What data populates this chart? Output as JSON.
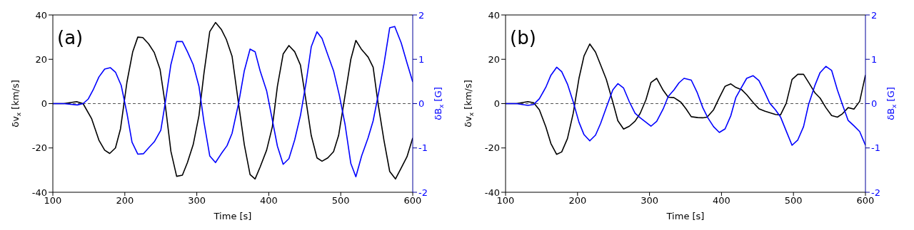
{
  "chart_data": [
    {
      "type": "line",
      "annotations": [
        "(a)"
      ],
      "xlabel": "Time [s]",
      "ylabel": "δv$_{x}$ [km/s]",
      "y2label": "δB$_{x}$ [G]",
      "xlim": [
        100,
        600
      ],
      "xticks": [
        100,
        200,
        300,
        400,
        500,
        600
      ],
      "ylim": [
        -40,
        40
      ],
      "yticks": [
        -40,
        -20,
        0,
        20,
        40
      ],
      "y2lim": [
        -2,
        2
      ],
      "y2ticks": [
        -2,
        -1,
        0,
        1,
        2
      ],
      "marker": "none",
      "line_style": "solid",
      "ref_lines": [
        {
          "axis": "y",
          "value": 0,
          "color": "#555555",
          "line_style": "dashed"
        }
      ],
      "series": [
        {
          "color": "#000000",
          "x": [
            100,
            115,
            133,
            142,
            154,
            164,
            172,
            179,
            187,
            194,
            203,
            211,
            218,
            225,
            233,
            241,
            249,
            256,
            264,
            272,
            280,
            287,
            295,
            303,
            310,
            318,
            326,
            334,
            341,
            349,
            358,
            366,
            374,
            381,
            388,
            397,
            405,
            412,
            420,
            428,
            436,
            444,
            452,
            459,
            467,
            474,
            482,
            490,
            497,
            506,
            514,
            521,
            529,
            538,
            545,
            552,
            560,
            568,
            576,
            584,
            592,
            600
          ],
          "values": [
            0,
            0,
            0.9,
            0,
            -6.9,
            -16.5,
            -21,
            -22.5,
            -20,
            -11.4,
            9.8,
            23.4,
            30,
            29.8,
            27,
            23,
            15.4,
            0,
            -21.5,
            -32.8,
            -32.3,
            -26.6,
            -18.5,
            -5.4,
            13.8,
            32.5,
            36.6,
            33.5,
            29,
            21.4,
            0,
            -18.5,
            -32,
            -34,
            -28.6,
            -21,
            -10.4,
            7.8,
            22.4,
            26.2,
            23.4,
            17.4,
            0.7,
            -14.4,
            -24.5,
            -26,
            -24.5,
            -21.7,
            -14.4,
            3.7,
            20,
            28.5,
            24.4,
            21,
            16.4,
            -0.3,
            -16.5,
            -30.6,
            -34,
            -29,
            -24,
            -15.5
          ]
        },
        {
          "color": "#0000ff",
          "axis": "y2",
          "x": [
            100,
            115,
            134,
            142,
            149,
            156,
            164,
            172,
            180,
            187,
            195,
            203,
            210,
            218,
            226,
            233,
            241,
            250,
            256,
            264,
            272,
            280,
            287,
            295,
            303,
            310,
            318,
            326,
            334,
            342,
            349,
            358,
            366,
            374,
            381,
            388,
            397,
            405,
            412,
            420,
            428,
            436,
            444,
            452,
            459,
            467,
            474,
            482,
            490,
            498,
            506,
            514,
            521,
            529,
            538,
            545,
            552,
            560,
            568,
            575,
            584,
            592,
            600
          ],
          "values": [
            0,
            0,
            -0.03,
            0,
            0.1,
            0.31,
            0.6,
            0.78,
            0.81,
            0.71,
            0.41,
            -0.22,
            -0.87,
            -1.14,
            -1.13,
            -1,
            -0.86,
            -0.6,
            0,
            0.88,
            1.4,
            1.4,
            1.17,
            0.88,
            0.39,
            -0.42,
            -1.18,
            -1.33,
            -1.13,
            -0.95,
            -0.67,
            0,
            0.74,
            1.23,
            1.17,
            0.74,
            0.29,
            -0.37,
            -0.96,
            -1.37,
            -1.24,
            -0.82,
            -0.27,
            0.49,
            1.28,
            1.62,
            1.47,
            1.1,
            0.74,
            0.19,
            -0.47,
            -1.35,
            -1.65,
            -1.18,
            -0.77,
            -0.39,
            0.19,
            0.89,
            1.71,
            1.74,
            1.37,
            0.92,
            0.49
          ]
        }
      ]
    },
    {
      "type": "line",
      "annotations": [
        "(b)"
      ],
      "xlabel": "Time [s]",
      "ylabel": "δv$_{x}$ [km/s]",
      "y2label": "δB$_{x}$ [G]",
      "xlim": [
        100,
        600
      ],
      "xticks": [
        100,
        200,
        300,
        400,
        500,
        600
      ],
      "ylim": [
        -40,
        40
      ],
      "yticks": [
        -40,
        -20,
        0,
        20,
        40
      ],
      "y2lim": [
        -2,
        2
      ],
      "y2ticks": [
        -2,
        -1,
        0,
        1,
        2
      ],
      "marker": "none",
      "line_style": "solid",
      "ref_lines": [
        {
          "axis": "y",
          "value": 0,
          "color": "#555555",
          "line_style": "dashed"
        }
      ],
      "series": [
        {
          "color": "#000000",
          "x": [
            100,
            115,
            131,
            139,
            147,
            156,
            163,
            171,
            178,
            186,
            194,
            202,
            209,
            217,
            225,
            232,
            240,
            249,
            256,
            264,
            272,
            280,
            287,
            295,
            302,
            310,
            319,
            326,
            334,
            341,
            344,
            351,
            358,
            367,
            374,
            380,
            389,
            397,
            405,
            413,
            420,
            428,
            435,
            444,
            452,
            460,
            467,
            475,
            482,
            490,
            498,
            506,
            514,
            521,
            530,
            537,
            545,
            553,
            561,
            568,
            576,
            584,
            592,
            600
          ],
          "values": [
            0,
            0,
            0.9,
            0.4,
            -2.8,
            -10.5,
            -18,
            -22.9,
            -21.8,
            -15.8,
            -4.4,
            11.4,
            21.5,
            26.9,
            23.2,
            17.5,
            10.9,
            0.7,
            -7.7,
            -11.5,
            -10.2,
            -7.9,
            -4.4,
            1.7,
            9.5,
            11.4,
            6,
            2.9,
            2.7,
            1.2,
            0.5,
            -2.5,
            -5.9,
            -6.3,
            -6.4,
            -6.1,
            -2.8,
            2.7,
            7.8,
            8.9,
            7.3,
            6.3,
            4,
            0.5,
            -2.3,
            -3.4,
            -4.1,
            -4.9,
            -5.1,
            0.2,
            10.9,
            13.2,
            13.2,
            9.6,
            4.8,
            2.5,
            -1.8,
            -5.4,
            -6.1,
            -4.6,
            -1.8,
            -2.5,
            1,
            12.9
          ]
        },
        {
          "color": "#0000ff",
          "axis": "y2",
          "x": [
            100,
            115,
            131,
            139,
            147,
            156,
            163,
            171,
            178,
            186,
            194,
            202,
            209,
            217,
            225,
            232,
            240,
            249,
            256,
            264,
            272,
            280,
            287,
            295,
            302,
            310,
            319,
            326,
            334,
            341,
            348,
            358,
            366,
            374,
            381,
            389,
            397,
            405,
            413,
            420,
            428,
            435,
            444,
            452,
            460,
            467,
            475,
            482,
            490,
            498,
            506,
            514,
            521,
            530,
            537,
            545,
            553,
            561,
            568,
            576,
            584,
            592,
            600
          ],
          "values": [
            0,
            0,
            -0.04,
            -0.02,
            0.11,
            0.37,
            0.64,
            0.82,
            0.72,
            0.44,
            0.04,
            -0.42,
            -0.7,
            -0.84,
            -0.71,
            -0.45,
            -0.09,
            0.31,
            0.45,
            0.35,
            0.04,
            -0.22,
            -0.32,
            -0.42,
            -0.51,
            -0.4,
            -0.12,
            0.16,
            0.31,
            0.47,
            0.57,
            0.53,
            0.26,
            -0.09,
            -0.32,
            -0.52,
            -0.65,
            -0.57,
            -0.27,
            0.14,
            0.37,
            0.57,
            0.63,
            0.52,
            0.26,
            0.01,
            -0.14,
            -0.3,
            -0.62,
            -0.94,
            -0.82,
            -0.52,
            -0.02,
            0.42,
            0.7,
            0.84,
            0.75,
            0.31,
            -0.02,
            -0.38,
            -0.5,
            -0.63,
            -0.94
          ]
        }
      ]
    }
  ]
}
